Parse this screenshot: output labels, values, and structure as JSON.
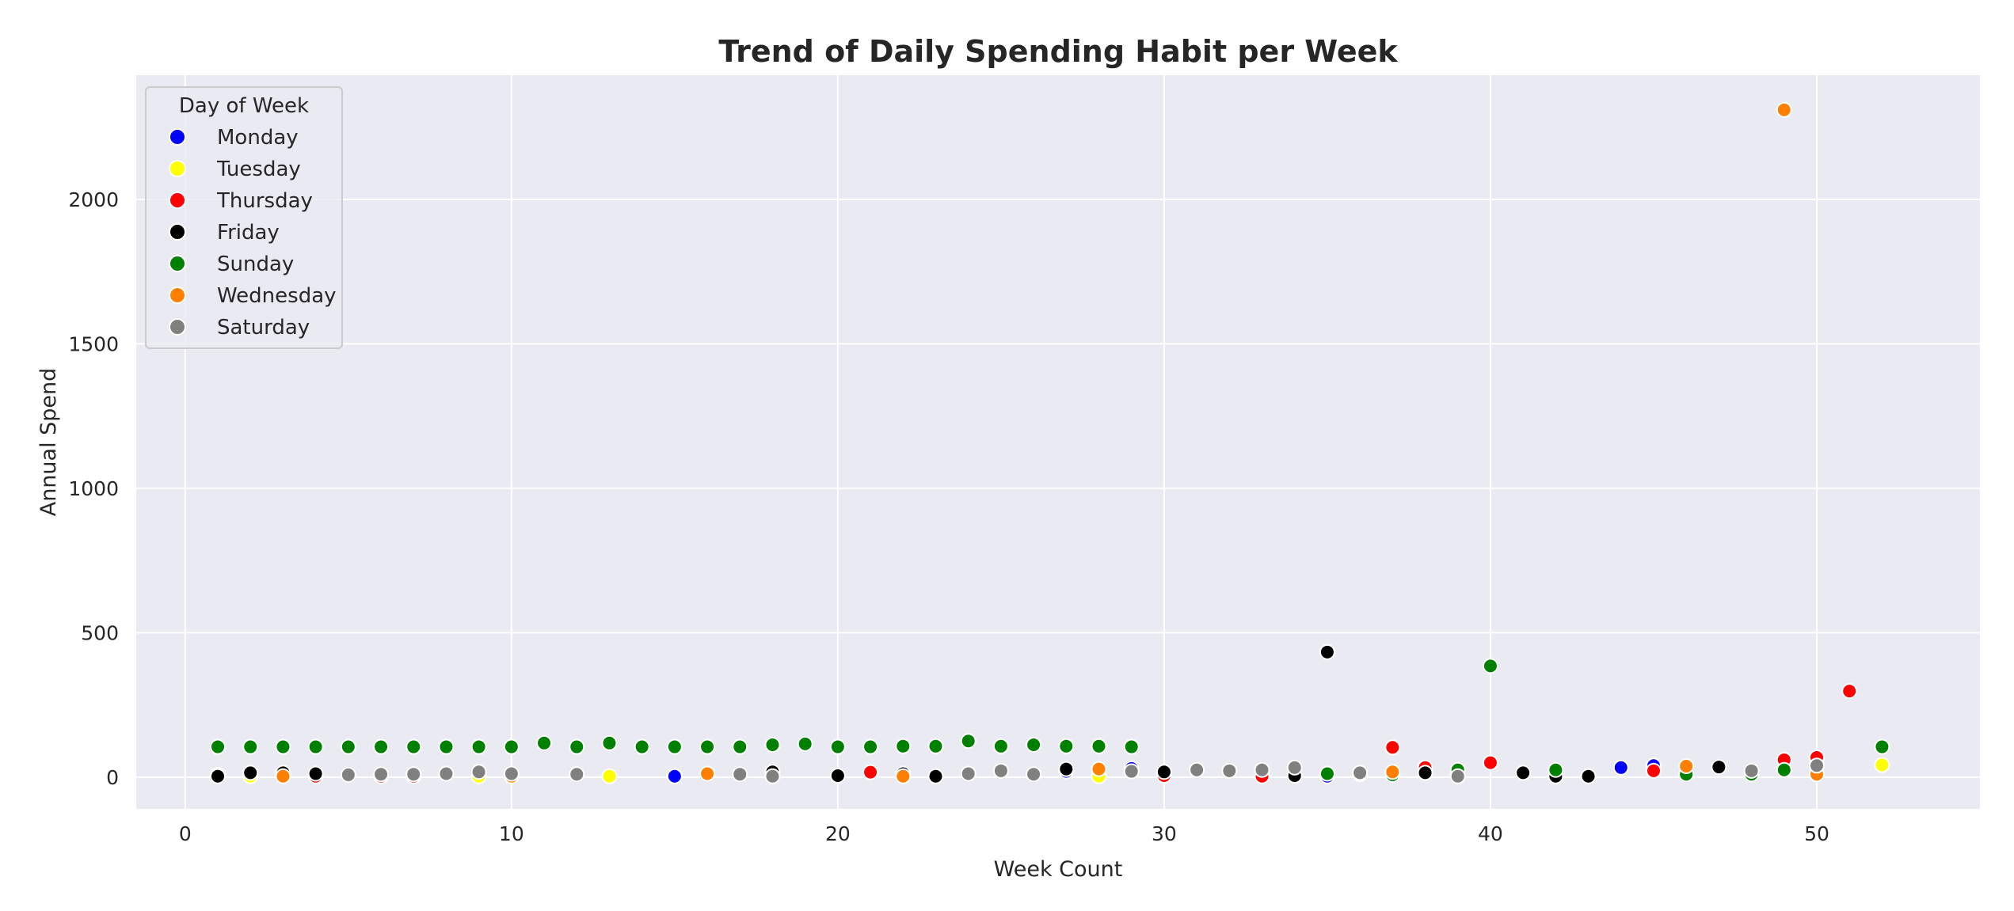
{
  "chart_data": {
    "type": "scatter",
    "title": "Trend of Daily Spending Habit per Week",
    "xlabel": "Week Count",
    "ylabel": "Annual Spend",
    "xlim": [
      -1.5,
      55
    ],
    "ylim": [
      -110,
      2430
    ],
    "xticks": [
      0,
      10,
      20,
      30,
      40,
      50
    ],
    "yticks": [
      0,
      500,
      1000,
      1500,
      2000
    ],
    "grid": true,
    "legend": {
      "title": "Day of Week",
      "placement": "top-left"
    },
    "series": [
      {
        "name": "Monday",
        "color": "#0000ff",
        "points": [
          [
            1,
            8
          ],
          [
            15,
            3
          ],
          [
            27,
            20
          ],
          [
            29,
            30
          ],
          [
            35,
            3
          ],
          [
            44,
            33
          ],
          [
            45,
            40
          ]
        ]
      },
      {
        "name": "Tuesday",
        "color": "#ffff00",
        "points": [
          [
            2,
            3
          ],
          [
            9,
            3
          ],
          [
            13,
            3
          ],
          [
            28,
            3
          ],
          [
            52,
            42
          ]
        ]
      },
      {
        "name": "Thursday",
        "color": "#ff0000",
        "points": [
          [
            4,
            3
          ],
          [
            6,
            3
          ],
          [
            7,
            3
          ],
          [
            21,
            17
          ],
          [
            30,
            5
          ],
          [
            33,
            3
          ],
          [
            37,
            103
          ],
          [
            38,
            33
          ],
          [
            40,
            50
          ],
          [
            45,
            22
          ],
          [
            49,
            60
          ],
          [
            50,
            68
          ],
          [
            51,
            298
          ]
        ]
      },
      {
        "name": "Friday",
        "color": "#000000",
        "points": [
          [
            1,
            3
          ],
          [
            2,
            15
          ],
          [
            3,
            15
          ],
          [
            4,
            12
          ],
          [
            18,
            18
          ],
          [
            20,
            5
          ],
          [
            22,
            12
          ],
          [
            23,
            3
          ],
          [
            27,
            28
          ],
          [
            30,
            18
          ],
          [
            34,
            5
          ],
          [
            35,
            433
          ],
          [
            38,
            15
          ],
          [
            41,
            15
          ],
          [
            42,
            3
          ],
          [
            43,
            3
          ],
          [
            47,
            35
          ]
        ]
      },
      {
        "name": "Sunday",
        "color": "#008000",
        "points": [
          [
            1,
            105
          ],
          [
            2,
            105
          ],
          [
            3,
            105
          ],
          [
            4,
            105
          ],
          [
            5,
            105
          ],
          [
            6,
            105
          ],
          [
            7,
            105
          ],
          [
            8,
            105
          ],
          [
            9,
            105
          ],
          [
            10,
            105
          ],
          [
            11,
            118
          ],
          [
            12,
            105
          ],
          [
            13,
            118
          ],
          [
            14,
            105
          ],
          [
            15,
            105
          ],
          [
            16,
            105
          ],
          [
            17,
            105
          ],
          [
            18,
            112
          ],
          [
            19,
            115
          ],
          [
            20,
            105
          ],
          [
            21,
            105
          ],
          [
            22,
            107
          ],
          [
            23,
            107
          ],
          [
            24,
            125
          ],
          [
            25,
            107
          ],
          [
            26,
            112
          ],
          [
            27,
            107
          ],
          [
            28,
            107
          ],
          [
            29,
            105
          ],
          [
            35,
            12
          ],
          [
            36,
            10
          ],
          [
            37,
            8
          ],
          [
            39,
            25
          ],
          [
            40,
            385
          ],
          [
            42,
            25
          ],
          [
            46,
            10
          ],
          [
            48,
            10
          ],
          [
            49,
            25
          ],
          [
            52,
            105
          ]
        ]
      },
      {
        "name": "Wednesday",
        "color": "#ff8000",
        "points": [
          [
            3,
            3
          ],
          [
            10,
            3
          ],
          [
            16,
            12
          ],
          [
            22,
            3
          ],
          [
            28,
            28
          ],
          [
            37,
            18
          ],
          [
            46,
            38
          ],
          [
            49,
            2310
          ],
          [
            50,
            10
          ]
        ]
      },
      {
        "name": "Saturday",
        "color": "#808080",
        "points": [
          [
            5,
            8
          ],
          [
            6,
            10
          ],
          [
            7,
            10
          ],
          [
            8,
            12
          ],
          [
            9,
            18
          ],
          [
            10,
            12
          ],
          [
            12,
            10
          ],
          [
            17,
            10
          ],
          [
            18,
            3
          ],
          [
            24,
            12
          ],
          [
            25,
            22
          ],
          [
            26,
            10
          ],
          [
            29,
            20
          ],
          [
            31,
            25
          ],
          [
            32,
            22
          ],
          [
            33,
            25
          ],
          [
            34,
            33
          ],
          [
            36,
            15
          ],
          [
            39,
            3
          ],
          [
            48,
            22
          ],
          [
            50,
            40
          ]
        ]
      }
    ]
  }
}
